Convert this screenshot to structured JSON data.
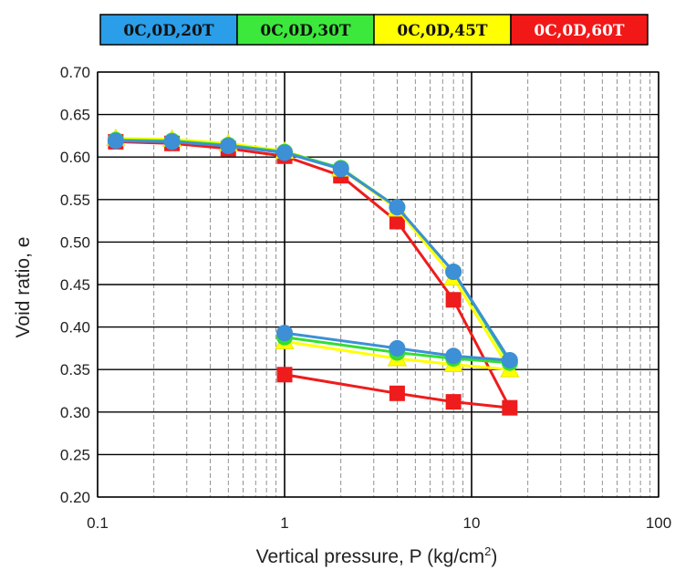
{
  "chart_data": {
    "type": "line",
    "x_scale": "log",
    "xlim": [
      0.1,
      100
    ],
    "ylim": [
      0.2,
      0.7
    ],
    "xlabel_main": "Vertical pressure, P (kg/cm",
    "xlabel_sup": "2",
    "xlabel_tail": ")",
    "ylabel": "Void ratio, e",
    "x_ticks": [
      0.1,
      1,
      10,
      100
    ],
    "x_tick_labels": [
      "0.1",
      "1",
      "10",
      "100"
    ],
    "y_ticks": [
      0.2,
      0.25,
      0.3,
      0.35,
      0.4,
      0.45,
      0.5,
      0.55,
      0.6,
      0.65,
      0.7
    ],
    "y_tick_labels": [
      "0.20",
      "0.25",
      "0.30",
      "0.35",
      "0.40",
      "0.45",
      "0.50",
      "0.55",
      "0.60",
      "0.65",
      "0.70"
    ],
    "grid": true,
    "legend_position": "top",
    "series": [
      {
        "name": "0C,0D,60T",
        "color": "#ee1c1c",
        "legend_color": "#f21818",
        "legend_text_color": "#ffffff",
        "marker": "square",
        "loading": {
          "x": [
            0.125,
            0.25,
            0.5,
            1,
            2,
            4,
            8,
            16
          ],
          "y": [
            0.618,
            0.616,
            0.61,
            0.601,
            0.578,
            0.524,
            0.432,
            0.305
          ]
        },
        "unloading": {
          "x": [
            16,
            8,
            4,
            1
          ],
          "y": [
            0.305,
            0.312,
            0.322,
            0.344
          ]
        }
      },
      {
        "name": "0C,0D,45T",
        "color": "#ffff00",
        "legend_color": "#ffff00",
        "legend_text_color": "#111111",
        "marker": "triangle",
        "loading": {
          "x": [
            0.125,
            0.25,
            0.5,
            1,
            2,
            4,
            8,
            16
          ],
          "y": [
            0.622,
            0.621,
            0.616,
            0.607,
            0.586,
            0.539,
            0.458,
            0.35
          ]
        },
        "unloading": {
          "x": [
            16,
            8,
            4,
            1
          ],
          "y": [
            0.35,
            0.356,
            0.363,
            0.383
          ]
        }
      },
      {
        "name": "0C,0D,30T",
        "color": "#33dd33",
        "legend_color": "#3ce83c",
        "legend_text_color": "#111111",
        "marker": "circle",
        "loading": {
          "x": [
            0.125,
            0.25,
            0.5,
            1,
            2,
            4,
            8,
            16
          ],
          "y": [
            0.62,
            0.619,
            0.614,
            0.606,
            0.587,
            0.541,
            0.465,
            0.358
          ]
        },
        "unloading": {
          "x": [
            16,
            8,
            4,
            1
          ],
          "y": [
            0.358,
            0.363,
            0.37,
            0.388
          ]
        }
      },
      {
        "name": "0C,0D,20T",
        "color": "#3d8fd6",
        "legend_color": "#2a9ee8",
        "legend_text_color": "#111111",
        "marker": "circle",
        "loading": {
          "x": [
            0.125,
            0.25,
            0.5,
            1,
            2,
            4,
            8,
            16
          ],
          "y": [
            0.619,
            0.618,
            0.613,
            0.605,
            0.586,
            0.541,
            0.465,
            0.361
          ]
        },
        "unloading": {
          "x": [
            16,
            8,
            4,
            1
          ],
          "y": [
            0.361,
            0.366,
            0.375,
            0.393
          ]
        }
      }
    ],
    "legend_order": [
      "0C,0D,20T",
      "0C,0D,30T",
      "0C,0D,45T",
      "0C,0D,60T"
    ]
  }
}
